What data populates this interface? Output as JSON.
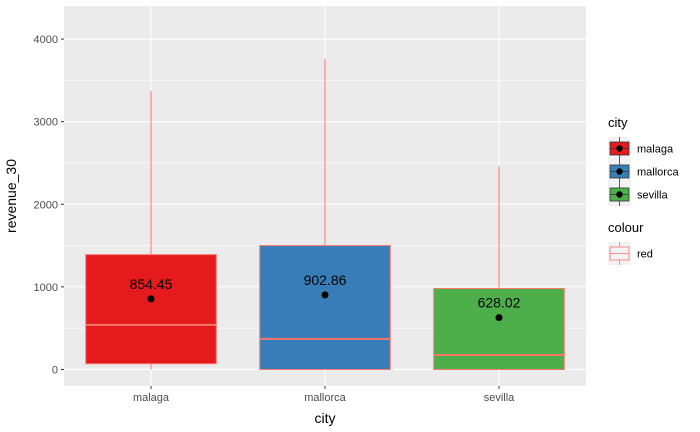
{
  "chart_data": {
    "type": "boxplot",
    "xlabel": "city",
    "ylabel": "revenue_30",
    "ylim": [
      -200,
      4400
    ],
    "yticks": [
      0,
      1000,
      2000,
      3000,
      4000
    ],
    "categories": [
      "malaga",
      "mallorca",
      "sevilla"
    ],
    "boxes": [
      {
        "category": "malaga",
        "q1": 70,
        "median": 540,
        "q3": 1390,
        "whisker_low": 0,
        "whisker_high": 3370,
        "mean": 854.45,
        "mean_label": "854.45",
        "fill": "#e41a1c"
      },
      {
        "category": "mallorca",
        "q1": 0,
        "median": 370,
        "q3": 1500,
        "whisker_low": 0,
        "whisker_high": 3760,
        "mean": 902.86,
        "mean_label": "902.86",
        "fill": "#377eb8"
      },
      {
        "category": "sevilla",
        "q1": 0,
        "median": 175,
        "q3": 980,
        "whisker_low": 0,
        "whisker_high": 2460,
        "mean": 628.02,
        "mean_label": "628.02",
        "fill": "#4daf4a"
      }
    ],
    "outline_color": "#f8766d",
    "grid": true,
    "panel_color": "#ebebeb",
    "legend_position": "right",
    "legends": [
      {
        "title": "city",
        "entries": [
          {
            "label": "malaga",
            "fill": "#e41a1c"
          },
          {
            "label": "mallorca",
            "fill": "#377eb8"
          },
          {
            "label": "sevilla",
            "fill": "#4daf4a"
          }
        ]
      },
      {
        "title": "colour",
        "entries": [
          {
            "label": "red",
            "fill": "#f2f2f2"
          }
        ]
      }
    ]
  }
}
